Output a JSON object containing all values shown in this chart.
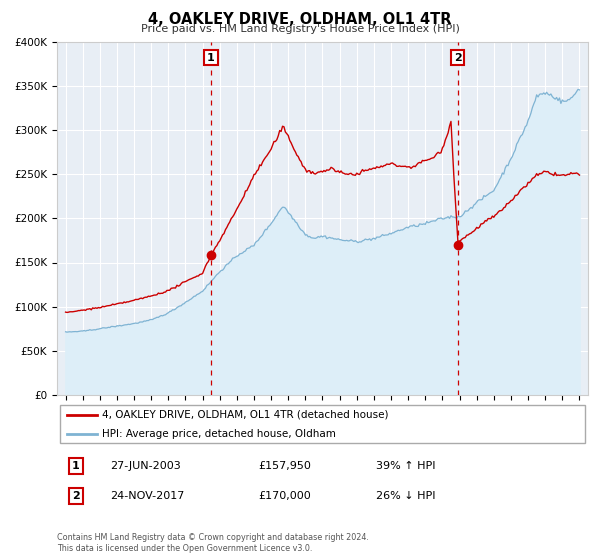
{
  "title": "4, OAKLEY DRIVE, OLDHAM, OL1 4TR",
  "subtitle": "Price paid vs. HM Land Registry's House Price Index (HPI)",
  "hpi_label": "HPI: Average price, detached house, Oldham",
  "property_label": "4, OAKLEY DRIVE, OLDHAM, OL1 4TR (detached house)",
  "footer1": "Contains HM Land Registry data © Crown copyright and database right 2024.",
  "footer2": "This data is licensed under the Open Government Licence v3.0.",
  "ylim": [
    0,
    400000
  ],
  "yticks": [
    0,
    50000,
    100000,
    150000,
    200000,
    250000,
    300000,
    350000,
    400000
  ],
  "ytick_labels": [
    "£0",
    "£50K",
    "£100K",
    "£150K",
    "£200K",
    "£250K",
    "£300K",
    "£350K",
    "£400K"
  ],
  "xlim_start": 1994.5,
  "xlim_end": 2025.5,
  "event1_x": 2003.486,
  "event1_y": 157950,
  "event1_label": "1",
  "event1_date": "27-JUN-2003",
  "event1_price": "£157,950",
  "event1_hpi": "39% ↑ HPI",
  "event2_x": 2017.899,
  "event2_y": 170000,
  "event2_label": "2",
  "event2_date": "24-NOV-2017",
  "event2_price": "£170,000",
  "event2_hpi": "26% ↓ HPI",
  "property_color": "#cc0000",
  "hpi_color": "#7fb3d3",
  "hpi_fill_color": "#ddeef8",
  "grid_color": "#ffffff",
  "background_color": "#e8eef5",
  "spine_color": "#cccccc"
}
